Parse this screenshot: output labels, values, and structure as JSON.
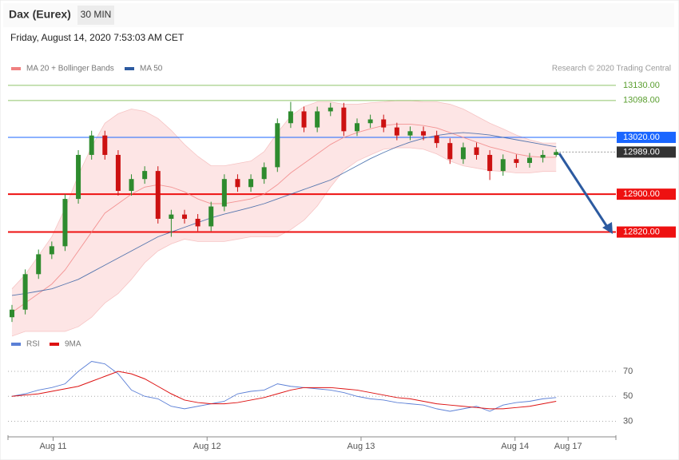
{
  "header": {
    "instrument": "Dax (Eurex)",
    "timeframe": "30 MIN",
    "timestamp": "Friday, August 14, 2020 7:53:03 AM CET"
  },
  "credit": "Research © 2020 Trading Central",
  "chart_data": [
    {
      "type": "candlestick",
      "open": [
        12640,
        12656,
        12731,
        12773,
        12790,
        12890,
        12983,
        13024,
        12983,
        12907,
        12932,
        12949,
        12848,
        12857,
        12848,
        12832,
        12874,
        12932,
        12915,
        12932,
        12957,
        13050,
        13075,
        13041,
        13075,
        13083,
        13033,
        13050,
        13058,
        13041,
        13024,
        13033,
        13024,
        13008,
        12974,
        12999,
        12983,
        12949,
        12974,
        12966,
        12977,
        12983
      ],
      "high": [
        12666,
        12741,
        12783,
        12800,
        12900,
        12993,
        13034,
        13034,
        12993,
        12942,
        12959,
        12959,
        12867,
        12867,
        12858,
        12884,
        12942,
        12942,
        12942,
        12967,
        13060,
        13095,
        13085,
        13085,
        13093,
        13093,
        13060,
        13068,
        13068,
        13051,
        13043,
        13043,
        13034,
        13018,
        13009,
        13009,
        12993,
        12984,
        12984,
        12987,
        12993,
        12995
      ],
      "low": [
        12630,
        12646,
        12721,
        12763,
        12780,
        12880,
        12973,
        12973,
        12897,
        12897,
        12922,
        12838,
        12810,
        12838,
        12822,
        12822,
        12864,
        12905,
        12905,
        12922,
        12947,
        13040,
        13031,
        13031,
        13065,
        13023,
        13023,
        13040,
        13031,
        13014,
        13014,
        13014,
        12998,
        12964,
        12964,
        12973,
        12930,
        12939,
        12956,
        12956,
        12967,
        12979
      ],
      "close": [
        12656,
        12731,
        12773,
        12790,
        12890,
        12983,
        13024,
        12983,
        12907,
        12932,
        12949,
        12848,
        12857,
        12848,
        12832,
        12874,
        12932,
        12915,
        12932,
        12957,
        13050,
        13075,
        13041,
        13075,
        13083,
        13033,
        13050,
        13058,
        13041,
        13024,
        13033,
        13024,
        13008,
        12974,
        12999,
        12983,
        12949,
        12974,
        12966,
        12977,
        12983,
        12989
      ],
      "up_color": "#2e8b2e",
      "down_color": "#cc1111",
      "series": [
        {
          "name": "MA 20 + Bollinger Bands",
          "color": "#f08080",
          "values": [
            12650,
            12670,
            12690,
            12710,
            12740,
            12780,
            12820,
            12860,
            12880,
            12900,
            12915,
            12920,
            12915,
            12905,
            12890,
            12880,
            12880,
            12885,
            12890,
            12900,
            12920,
            12945,
            12965,
            12985,
            13005,
            13020,
            13030,
            13038,
            13045,
            13048,
            13048,
            13045,
            13040,
            13030,
            13020,
            13010,
            13000,
            12993,
            12985,
            12980,
            12978,
            12978
          ],
          "upper": [
            12700,
            12730,
            12770,
            12810,
            12870,
            12940,
            13000,
            13050,
            13070,
            13080,
            13075,
            13060,
            13035,
            13005,
            12980,
            12960,
            12960,
            12965,
            12970,
            12990,
            13030,
            13065,
            13085,
            13095,
            13095,
            13090,
            13090,
            13093,
            13095,
            13098,
            13098,
            13095,
            13095,
            13090,
            13080,
            13065,
            13050,
            13038,
            13025,
            13015,
            13008,
            13008
          ],
          "lower": [
            12600,
            12610,
            12610,
            12610,
            12610,
            12620,
            12640,
            12670,
            12690,
            12720,
            12755,
            12780,
            12795,
            12805,
            12800,
            12800,
            12800,
            12805,
            12810,
            12810,
            12810,
            12825,
            12845,
            12875,
            12915,
            12950,
            12970,
            12983,
            12995,
            12998,
            12998,
            12995,
            12985,
            12970,
            12960,
            12955,
            12950,
            12948,
            12945,
            12945,
            12948,
            12948
          ]
        },
        {
          "name": "MA 50",
          "color": "#2c5aa0",
          "values": [
            12686,
            12690,
            12695,
            12700,
            12710,
            12720,
            12735,
            12750,
            12765,
            12780,
            12795,
            12810,
            12820,
            12830,
            12840,
            12850,
            12858,
            12865,
            12872,
            12880,
            12890,
            12900,
            12910,
            12920,
            12930,
            12945,
            12960,
            12975,
            12988,
            13000,
            13010,
            13018,
            13024,
            13028,
            13030,
            13028,
            13025,
            13020,
            13015,
            13010,
            13005,
            13000
          ]
        }
      ],
      "levels": [
        {
          "value": 13130,
          "label": "13130.00",
          "color": "#8fc46a",
          "boxed": false
        },
        {
          "value": 13098,
          "label": "13098.00",
          "color": "#8fc46a",
          "boxed": false
        },
        {
          "value": 13020,
          "label": "13020.00",
          "color": "#1a66ff",
          "boxed": true
        },
        {
          "value": 12989,
          "label": "12989.00",
          "color": "#333333",
          "boxed": true
        },
        {
          "value": 12900,
          "label": "12900.00",
          "color": "#ee1111",
          "boxed": true
        },
        {
          "value": 12820,
          "label": "12820.00",
          "color": "#ee1111",
          "boxed": true
        }
      ],
      "ylim": [
        12610,
        13150
      ],
      "xlim": [
        -0.3,
        45.5
      ],
      "xticks": [
        {
          "value": 3.1,
          "label": "Aug 11"
        },
        {
          "value": 14.7,
          "label": "Aug 12"
        },
        {
          "value": 26.3,
          "label": "Aug 13"
        },
        {
          "value": 37.9,
          "label": "Aug 14"
        },
        {
          "value": 41.9,
          "label": "Aug 17"
        }
      ]
    },
    {
      "type": "line",
      "series": [
        {
          "name": "RSI",
          "color": "#5b7fd6",
          "values": [
            50,
            52,
            55,
            57,
            60,
            70,
            78,
            76,
            68,
            55,
            50,
            48,
            42,
            40,
            42,
            44,
            46,
            52,
            54,
            55,
            60,
            58,
            57,
            56,
            55,
            53,
            50,
            48,
            47,
            45,
            44,
            43,
            40,
            38,
            40,
            42,
            38,
            43,
            45,
            46,
            48,
            49
          ]
        },
        {
          "name": "9MA",
          "color": "#dd1111",
          "values": [
            50,
            51,
            52,
            54,
            56,
            58,
            62,
            66,
            70,
            68,
            64,
            58,
            52,
            47,
            45,
            44,
            44,
            45,
            47,
            49,
            52,
            55,
            57,
            57,
            57,
            56,
            55,
            53,
            51,
            49,
            48,
            46,
            44,
            43,
            42,
            41,
            40,
            40,
            41,
            42,
            44,
            46
          ]
        }
      ],
      "ylim": [
        22,
        86
      ],
      "yticks": [
        30,
        50,
        70
      ]
    }
  ]
}
